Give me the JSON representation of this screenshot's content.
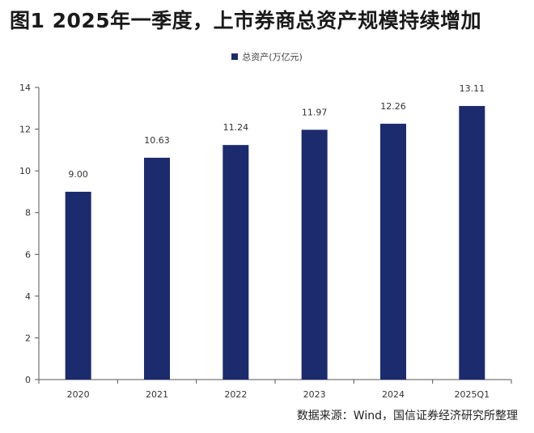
{
  "figure": {
    "title": "图1  2025年一季度，上市券商总资产规模持续增加",
    "source": "数据来源：Wind，国信证券经济研究所整理"
  },
  "colors": {
    "bar": "#1c2a6e",
    "axis": "#555555",
    "text": "#333333"
  },
  "chart_data": {
    "type": "bar",
    "title": "",
    "xlabel": "",
    "ylabel": "",
    "categories": [
      "2020",
      "2021",
      "2022",
      "2023",
      "2024",
      "2025Q1"
    ],
    "series": [
      {
        "name": "总资产(万亿元)",
        "values": [
          9.0,
          10.63,
          11.24,
          11.97,
          12.26,
          13.11
        ]
      }
    ],
    "data_labels": [
      "9.00",
      "10.63",
      "11.24",
      "11.97",
      "12.26",
      "13.11"
    ],
    "ylim": [
      0,
      14
    ],
    "yticks": [
      0,
      2,
      4,
      6,
      8,
      10,
      12,
      14
    ],
    "grid": false,
    "legend_position": "top-center"
  }
}
